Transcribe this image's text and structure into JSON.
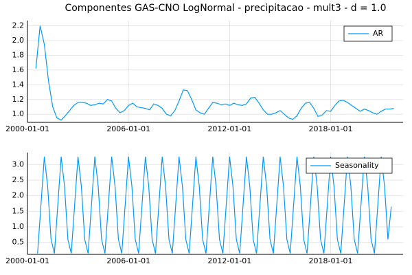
{
  "chart_data": [
    {
      "type": "line",
      "title": "Componentes GAS-CNO LogNormal - precipitacao - mult3 - d = 1.0",
      "x": [
        2000.5,
        2000.75,
        2001,
        2001.25,
        2001.5,
        2001.75,
        2002,
        2002.25,
        2002.5,
        2002.75,
        2003,
        2003.25,
        2003.5,
        2003.75,
        2004,
        2004.25,
        2004.5,
        2004.75,
        2005,
        2005.25,
        2005.5,
        2005.75,
        2006,
        2006.25,
        2006.5,
        2006.75,
        2007,
        2007.25,
        2007.5,
        2007.75,
        2008,
        2008.25,
        2008.5,
        2008.75,
        2009,
        2009.25,
        2009.5,
        2009.75,
        2010,
        2010.25,
        2010.5,
        2010.75,
        2011,
        2011.25,
        2011.5,
        2011.75,
        2012,
        2012.25,
        2012.5,
        2012.75,
        2013,
        2013.25,
        2013.5,
        2013.75,
        2014,
        2014.25,
        2014.5,
        2014.75,
        2015,
        2015.25,
        2015.5,
        2015.75,
        2016,
        2016.25,
        2016.5,
        2016.75,
        2017,
        2017.25,
        2017.5,
        2017.75,
        2018,
        2018.25,
        2018.5,
        2018.75,
        2019,
        2019.25,
        2019.5,
        2019.75,
        2020,
        2020.25,
        2020.5,
        2020.75,
        2021,
        2021.25,
        2021.5,
        2021.75
      ],
      "series": [
        {
          "name": "AR",
          "color": "#009af9",
          "values": [
            1.62,
            2.2,
            1.95,
            1.45,
            1.1,
            0.95,
            0.92,
            0.98,
            1.05,
            1.12,
            1.16,
            1.16,
            1.15,
            1.12,
            1.13,
            1.15,
            1.14,
            1.2,
            1.18,
            1.08,
            1.02,
            1.05,
            1.12,
            1.15,
            1.1,
            1.09,
            1.08,
            1.06,
            1.14,
            1.12,
            1.08,
            1.0,
            0.98,
            1.05,
            1.18,
            1.33,
            1.32,
            1.2,
            1.06,
            1.02,
            1.0,
            1.08,
            1.16,
            1.15,
            1.13,
            1.14,
            1.12,
            1.15,
            1.13,
            1.12,
            1.14,
            1.22,
            1.23,
            1.15,
            1.06,
            1.0,
            1.0,
            1.02,
            1.05,
            1.0,
            0.95,
            0.93,
            0.98,
            1.08,
            1.15,
            1.16,
            1.08,
            0.97,
            0.99,
            1.05,
            1.04,
            1.12,
            1.18,
            1.19,
            1.16,
            1.12,
            1.08,
            1.04,
            1.07,
            1.05,
            1.02,
            1.0,
            1.04,
            1.07,
            1.07,
            1.08
          ]
        }
      ],
      "xlim": [
        2000.0,
        2022.3
      ],
      "xticks": [
        {
          "value": 2000,
          "label": "2000-01-01"
        },
        {
          "value": 2006,
          "label": "2006-01-01"
        },
        {
          "value": 2012,
          "label": "2012-01-01"
        },
        {
          "value": 2018,
          "label": "2018-01-01"
        }
      ],
      "ylim": [
        0.89,
        2.27
      ],
      "yticks": [
        {
          "value": 1,
          "label": "1.0"
        },
        {
          "value": 1.2,
          "label": "1.2"
        },
        {
          "value": 1.4,
          "label": "1.4"
        },
        {
          "value": 1.6,
          "label": "1.6"
        },
        {
          "value": 1.8,
          "label": "1.8"
        },
        {
          "value": 2,
          "label": "2.0"
        },
        {
          "value": 2.2,
          "label": "2.2"
        }
      ],
      "grid": true,
      "legend": "top-right"
    },
    {
      "type": "line",
      "x": [
        2000.6,
        2000.8,
        2001,
        2001.2,
        2001.4,
        2001.6,
        2001.8,
        2002,
        2002.2,
        2002.4,
        2002.6,
        2002.8,
        2003,
        2003.2,
        2003.4,
        2003.6,
        2003.8,
        2004,
        2004.2,
        2004.4,
        2004.6,
        2004.8,
        2005,
        2005.2,
        2005.4,
        2005.6,
        2005.8,
        2006,
        2006.2,
        2006.4,
        2006.6,
        2006.8,
        2007,
        2007.2,
        2007.4,
        2007.6,
        2007.8,
        2008,
        2008.2,
        2008.4,
        2008.6,
        2008.8,
        2009,
        2009.2,
        2009.4,
        2009.6,
        2009.8,
        2010,
        2010.2,
        2010.4,
        2010.6,
        2010.8,
        2011,
        2011.2,
        2011.4,
        2011.6,
        2011.8,
        2012,
        2012.2,
        2012.4,
        2012.6,
        2012.8,
        2013,
        2013.2,
        2013.4,
        2013.6,
        2013.8,
        2014,
        2014.2,
        2014.4,
        2014.6,
        2014.8,
        2015,
        2015.2,
        2015.4,
        2015.6,
        2015.8,
        2016,
        2016.2,
        2016.4,
        2016.6,
        2016.8,
        2017,
        2017.2,
        2017.4,
        2017.6,
        2017.8,
        2018,
        2018.2,
        2018.4,
        2018.6,
        2018.8,
        2019,
        2019.2,
        2019.4,
        2019.6,
        2019.8,
        2020,
        2020.2,
        2020.4,
        2020.6,
        2020.8,
        2021,
        2021.2,
        2021.4,
        2021.6
      ],
      "series": [
        {
          "name": "Seasonality",
          "color": "#009af9",
          "values": [
            0.15,
            1.7,
            3.25,
            2.3,
            0.6,
            0.15,
            1.7,
            3.25,
            2.3,
            0.6,
            0.15,
            1.7,
            3.25,
            2.3,
            0.6,
            0.15,
            1.7,
            3.25,
            2.3,
            0.6,
            0.15,
            1.7,
            3.25,
            2.3,
            0.6,
            0.15,
            1.7,
            3.25,
            2.3,
            0.6,
            0.15,
            1.7,
            3.25,
            2.3,
            0.6,
            0.15,
            1.7,
            3.25,
            2.3,
            0.6,
            0.15,
            1.7,
            3.25,
            2.3,
            0.6,
            0.15,
            1.7,
            3.25,
            2.3,
            0.6,
            0.15,
            1.7,
            3.25,
            2.3,
            0.6,
            0.15,
            1.7,
            3.25,
            2.3,
            0.6,
            0.15,
            1.7,
            3.25,
            2.3,
            0.6,
            0.15,
            1.7,
            3.25,
            2.3,
            0.6,
            0.15,
            1.7,
            3.25,
            2.3,
            0.6,
            0.15,
            1.7,
            3.25,
            2.3,
            0.6,
            0.15,
            1.7,
            3.25,
            2.3,
            0.6,
            0.15,
            1.7,
            3.25,
            2.3,
            0.6,
            0.15,
            1.7,
            3.25,
            2.3,
            0.6,
            0.15,
            1.7,
            3.25,
            2.3,
            0.6,
            0.15,
            1.7,
            3.25,
            2.3,
            0.6,
            1.65
          ]
        }
      ],
      "xlim": [
        2000.0,
        2022.3
      ],
      "xticks": [
        {
          "value": 2000,
          "label": "2000-01-01"
        },
        {
          "value": 2006,
          "label": "2006-01-01"
        },
        {
          "value": 2012,
          "label": "2012-01-01"
        },
        {
          "value": 2018,
          "label": "2018-01-01"
        }
      ],
      "ylim": [
        0.12,
        3.38
      ],
      "yticks": [
        0.5,
        {
          "value": 1,
          "label": "1.0"
        },
        1.5,
        {
          "value": 2,
          "label": "2.0"
        },
        2.5,
        {
          "value": 3,
          "label": "3.0"
        }
      ],
      "grid": true,
      "legend": "top-right"
    }
  ]
}
